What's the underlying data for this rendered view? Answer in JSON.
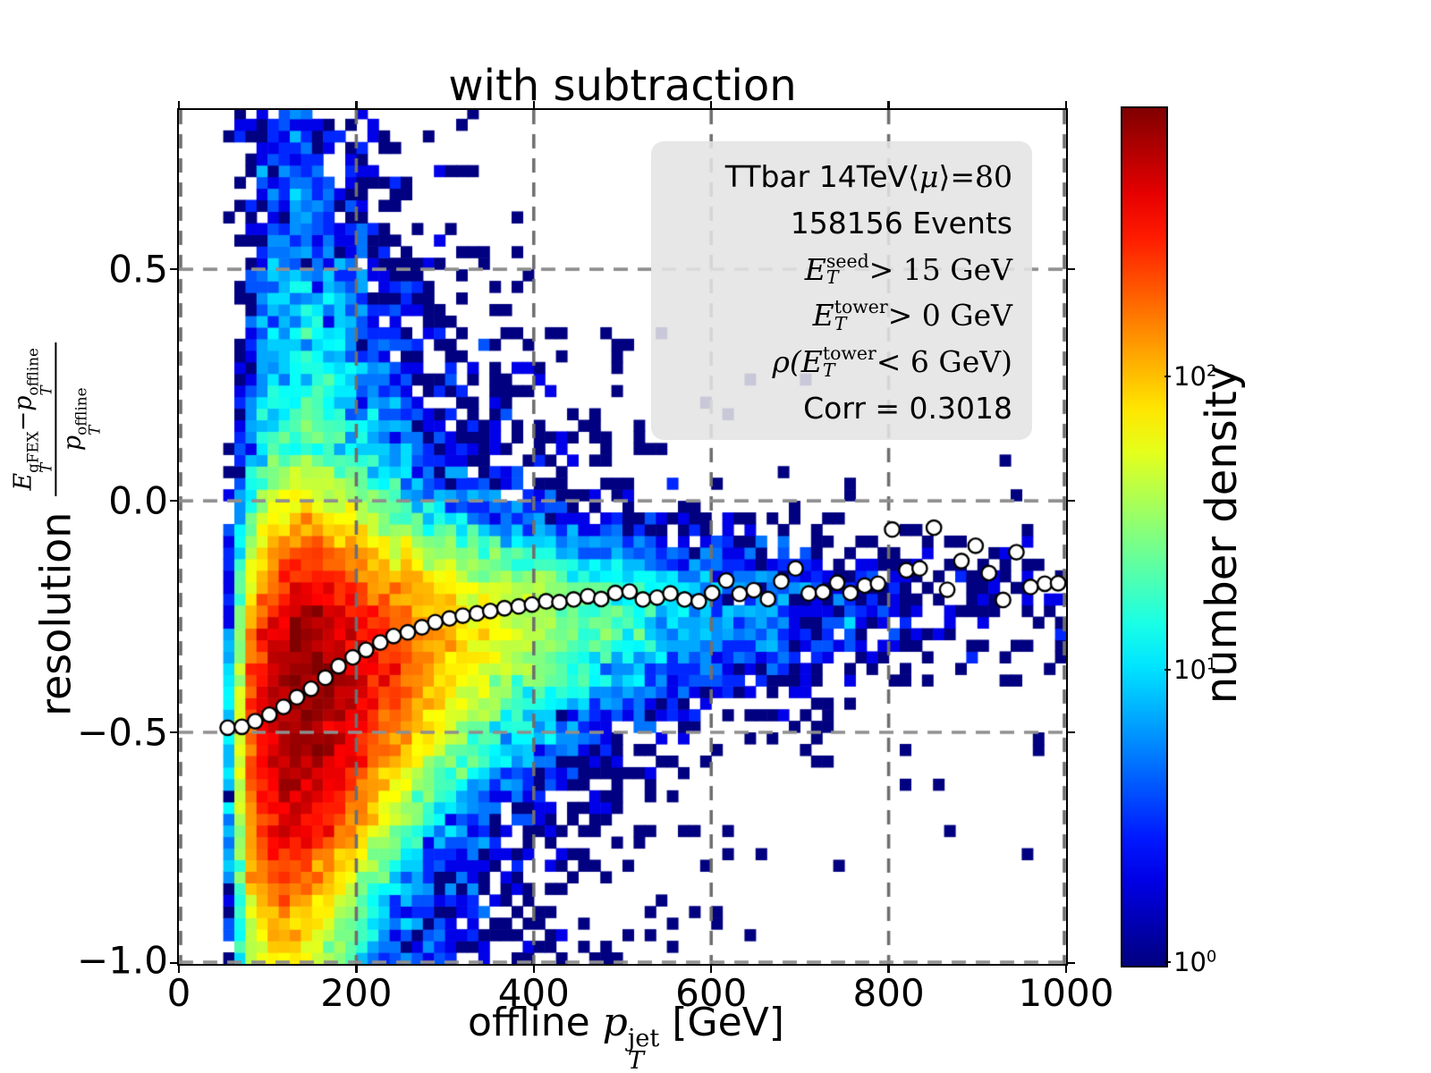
{
  "chart_data": {
    "type": "heatmap",
    "title": "with subtraction",
    "xlabel": {
      "prefix": "offline ",
      "base": "p",
      "sup": "jet",
      "sub": "T",
      "suffix": " [GeV]"
    },
    "ylabel": {
      "text": "resolution",
      "numerator": {
        "b1": "E",
        "b1sup": "gFEX",
        "b1sub": "T",
        "minus": "−",
        "b2": "p",
        "b2sup": "offline",
        "b2sub": "T"
      },
      "denominator": {
        "b": "p",
        "sup": "offline",
        "sub": "T"
      }
    },
    "xlim": [
      0,
      1000
    ],
    "ylim": [
      -1.0,
      0.844
    ],
    "xticks": [
      {
        "v": 0,
        "label": "0"
      },
      {
        "v": 200,
        "label": "200"
      },
      {
        "v": 400,
        "label": "400"
      },
      {
        "v": 600,
        "label": "600"
      },
      {
        "v": 800,
        "label": "800"
      },
      {
        "v": 1000,
        "label": "1000"
      }
    ],
    "yticks": [
      {
        "v": 0.5,
        "label": "0.5"
      },
      {
        "v": 0.0,
        "label": "0.0"
      },
      {
        "v": -0.5,
        "label": "−0.5"
      },
      {
        "v": -1.0,
        "label": "−1.0"
      }
    ],
    "grid": {
      "x_values": [
        0,
        200,
        400,
        600,
        800,
        1000
      ],
      "y_values": [
        0.5,
        0.0,
        -0.5,
        -1.0
      ],
      "style": "dashed",
      "color_h": "#8f8f8f",
      "color_v": "#6f6f6f"
    },
    "annotation": {
      "line1": {
        "prefix": "TTbar 14TeV ",
        "bra": "⟨",
        "mu": "μ",
        "ket": "⟩",
        "rhs": "=80"
      },
      "line2": {
        "text": "158156 Events"
      },
      "line3": {
        "base": "E",
        "sup": "seed",
        "sub": "T",
        "rest": " > 15 GeV"
      },
      "line4": {
        "base": "E",
        "sup": "tower",
        "sub": "T",
        "rest": " > 0 GeV"
      },
      "line5": {
        "rho": "ρ(",
        "base": "E",
        "sup": "tower",
        "sub": "T",
        "rest": " < 6 GeV)"
      },
      "line6": {
        "text": "Corr = 0.3018"
      }
    },
    "colorbar": {
      "label": "number density",
      "colormap": "jet",
      "scale": "log",
      "vmin": 1,
      "vmax": 830,
      "ticks": [
        {
          "base": "10",
          "exp": "0",
          "value": 1
        },
        {
          "base": "10",
          "exp": "1",
          "value": 10
        },
        {
          "base": "10",
          "exp": "2",
          "value": 100
        }
      ]
    },
    "histogram_model": {
      "x_bin_width": 12.5,
      "y_bin_width": 0.025,
      "x_data_min": 50,
      "seed": 20240613,
      "amplitude_points": [
        [
          50,
          4
        ],
        [
          62,
          22
        ],
        [
          75,
          110
        ],
        [
          87,
          280
        ],
        [
          100,
          460
        ],
        [
          115,
          640
        ],
        [
          130,
          800
        ],
        [
          145,
          830
        ],
        [
          160,
          760
        ],
        [
          180,
          600
        ],
        [
          200,
          450
        ],
        [
          230,
          280
        ],
        [
          260,
          185
        ],
        [
          300,
          105
        ],
        [
          350,
          62
        ],
        [
          400,
          40
        ],
        [
          450,
          26
        ],
        [
          500,
          17
        ],
        [
          560,
          10.5
        ],
        [
          620,
          7
        ],
        [
          700,
          4
        ],
        [
          800,
          2.0
        ],
        [
          900,
          0.9
        ],
        [
          1000,
          0.45
        ]
      ],
      "mean_curve": {
        "a": -0.195,
        "b": 0.31,
        "x0": 55,
        "halflife": 150
      },
      "sigma_up": {
        "base": 0.055,
        "amp": 0.16,
        "scale": 260
      },
      "sigma_down": {
        "base": 0.08,
        "amp": 0.22,
        "scale": 250
      },
      "core_fraction": 0.96,
      "tail_fraction": 0.04,
      "tail_width_ratio": 3.2,
      "noise_lognormal": 0.18
    },
    "profile_points": [
      [
        55,
        -0.49
      ],
      [
        71,
        -0.488
      ],
      [
        86,
        -0.476
      ],
      [
        102,
        -0.462
      ],
      [
        118,
        -0.445
      ],
      [
        133,
        -0.424
      ],
      [
        149,
        -0.406
      ],
      [
        165,
        -0.382
      ],
      [
        180,
        -0.357
      ],
      [
        196,
        -0.338
      ],
      [
        211,
        -0.322
      ],
      [
        227,
        -0.306
      ],
      [
        242,
        -0.292
      ],
      [
        258,
        -0.284
      ],
      [
        274,
        -0.273
      ],
      [
        289,
        -0.262
      ],
      [
        305,
        -0.254
      ],
      [
        320,
        -0.248
      ],
      [
        336,
        -0.243
      ],
      [
        351,
        -0.238
      ],
      [
        367,
        -0.232
      ],
      [
        383,
        -0.228
      ],
      [
        398,
        -0.224
      ],
      [
        414,
        -0.217
      ],
      [
        429,
        -0.219
      ],
      [
        445,
        -0.213
      ],
      [
        461,
        -0.206
      ],
      [
        476,
        -0.212
      ],
      [
        492,
        -0.199
      ],
      [
        508,
        -0.196
      ],
      [
        523,
        -0.213
      ],
      [
        539,
        -0.209
      ],
      [
        554,
        -0.2
      ],
      [
        570,
        -0.213
      ],
      [
        586,
        -0.217
      ],
      [
        601,
        -0.199
      ],
      [
        617,
        -0.172
      ],
      [
        632,
        -0.201
      ],
      [
        648,
        -0.193
      ],
      [
        664,
        -0.212
      ],
      [
        679,
        -0.174
      ],
      [
        695,
        -0.146
      ],
      [
        710,
        -0.2
      ],
      [
        726,
        -0.197
      ],
      [
        742,
        -0.177
      ],
      [
        757,
        -0.199
      ],
      [
        773,
        -0.183
      ],
      [
        788,
        -0.179
      ],
      [
        804,
        -0.062
      ],
      [
        820,
        -0.15
      ],
      [
        835,
        -0.146
      ],
      [
        851,
        -0.058
      ],
      [
        866,
        -0.192
      ],
      [
        882,
        -0.13
      ],
      [
        898,
        -0.097
      ],
      [
        913,
        -0.156
      ],
      [
        929,
        -0.214
      ],
      [
        944,
        -0.111
      ],
      [
        960,
        -0.186
      ],
      [
        976,
        -0.179
      ],
      [
        991,
        -0.178
      ]
    ],
    "profile_marker": {
      "shape": "circle",
      "fill": "#ffffff",
      "edge": "#000000",
      "radius_px": 8.2
    }
  }
}
